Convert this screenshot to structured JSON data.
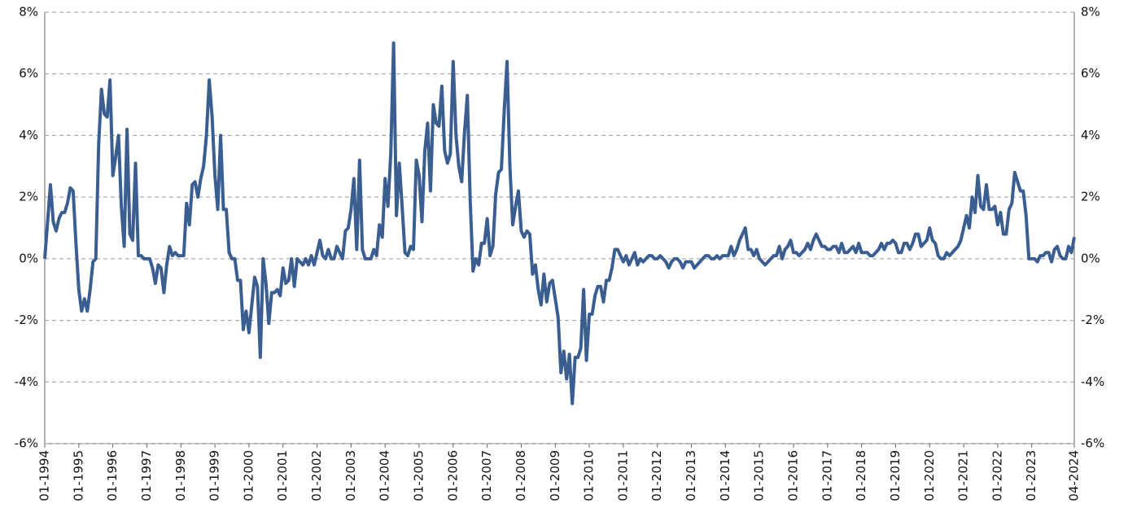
{
  "chart_data": {
    "type": "line",
    "categories": [
      "01-1994",
      null,
      null,
      null,
      null,
      null,
      null,
      null,
      null,
      null,
      null,
      null,
      "01-1995",
      null,
      null,
      null,
      null,
      null,
      null,
      null,
      null,
      null,
      null,
      null,
      "01-1996",
      null,
      null,
      null,
      null,
      null,
      null,
      null,
      null,
      null,
      null,
      null,
      "01-1997",
      null,
      null,
      null,
      null,
      null,
      null,
      null,
      null,
      null,
      null,
      null,
      "01-1998",
      null,
      null,
      null,
      null,
      null,
      null,
      null,
      null,
      null,
      null,
      null,
      "01-1999",
      null,
      null,
      null,
      null,
      null,
      null,
      null,
      null,
      null,
      null,
      null,
      "01-2000",
      null,
      null,
      null,
      null,
      null,
      null,
      null,
      null,
      null,
      null,
      null,
      "01-2001",
      null,
      null,
      null,
      null,
      null,
      null,
      null,
      null,
      null,
      null,
      null,
      "01-2002",
      null,
      null,
      null,
      null,
      null,
      null,
      null,
      null,
      null,
      null,
      null,
      "01-2003",
      null,
      null,
      null,
      null,
      null,
      null,
      null,
      null,
      null,
      null,
      null,
      "01-2004",
      null,
      null,
      null,
      null,
      null,
      null,
      null,
      null,
      null,
      null,
      null,
      "01-2005",
      null,
      null,
      null,
      null,
      null,
      null,
      null,
      null,
      null,
      null,
      null,
      "01-2006",
      null,
      null,
      null,
      null,
      null,
      null,
      null,
      null,
      null,
      null,
      null,
      "01-2007",
      null,
      null,
      null,
      null,
      null,
      null,
      null,
      null,
      null,
      null,
      null,
      "01-2008",
      null,
      null,
      null,
      null,
      null,
      null,
      null,
      null,
      null,
      null,
      null,
      "01-2009",
      null,
      null,
      null,
      null,
      null,
      null,
      null,
      null,
      null,
      null,
      null,
      "01-2010",
      null,
      null,
      null,
      null,
      null,
      null,
      null,
      null,
      null,
      null,
      null,
      "01-2011",
      null,
      null,
      null,
      null,
      null,
      null,
      null,
      null,
      null,
      null,
      null,
      "01-2012",
      null,
      null,
      null,
      null,
      null,
      null,
      null,
      null,
      null,
      null,
      null,
      "01-2013",
      null,
      null,
      null,
      null,
      null,
      null,
      null,
      null,
      null,
      null,
      null,
      "01-2014",
      null,
      null,
      null,
      null,
      null,
      null,
      null,
      null,
      null,
      null,
      null,
      "01-2015",
      null,
      null,
      null,
      null,
      null,
      null,
      null,
      null,
      null,
      null,
      null,
      "01-2016",
      null,
      null,
      null,
      null,
      null,
      null,
      null,
      null,
      null,
      null,
      null,
      "01-2017",
      null,
      null,
      null,
      null,
      null,
      null,
      null,
      null,
      null,
      null,
      null,
      "01-2018",
      null,
      null,
      null,
      null,
      null,
      null,
      null,
      null,
      null,
      null,
      null,
      "01-2019",
      null,
      null,
      null,
      null,
      null,
      null,
      null,
      null,
      null,
      null,
      null,
      "01-2020",
      null,
      null,
      null,
      null,
      null,
      null,
      null,
      null,
      null,
      null,
      null,
      "01-2021",
      null,
      null,
      null,
      null,
      null,
      null,
      null,
      null,
      null,
      null,
      null,
      "01-2022",
      null,
      null,
      null,
      null,
      null,
      null,
      null,
      null,
      null,
      null,
      null,
      "01-2023",
      null,
      null,
      null,
      null,
      null,
      null,
      null,
      null,
      null,
      null,
      null,
      null,
      null,
      null,
      "04-2024"
    ],
    "values": [
      0,
      1.2,
      2.4,
      1.2,
      0.9,
      1.3,
      1.5,
      1.5,
      1.8,
      2.3,
      2.2,
      0.5,
      -1.0,
      -1.7,
      -1.3,
      -1.7,
      -1.0,
      -0.1,
      0,
      3.7,
      5.5,
      4.7,
      4.6,
      5.8,
      2.7,
      3.3,
      4.0,
      1.7,
      0.4,
      4.2,
      0.8,
      0.6,
      3.1,
      0.1,
      0.1,
      0,
      0,
      0,
      -0.3,
      -0.8,
      -0.2,
      -0.3,
      -1.1,
      -0.2,
      0.4,
      0.1,
      0.2,
      0.1,
      0.1,
      0.1,
      1.8,
      1.1,
      2.4,
      2.5,
      2.0,
      2.6,
      3.0,
      4.0,
      5.8,
      4.6,
      2.7,
      1.6,
      4.0,
      1.6,
      1.6,
      0.2,
      0,
      0,
      -0.7,
      -0.7,
      -2.3,
      -1.7,
      -2.4,
      -1.5,
      -0.6,
      -0.9,
      -3.2,
      0,
      -0.8,
      -2.1,
      -1.1,
      -1.1,
      -1.0,
      -1.2,
      -0.3,
      -0.8,
      -0.7,
      0,
      -0.9,
      0,
      -0.1,
      -0.2,
      0,
      -0.2,
      0.1,
      -0.2,
      0.2,
      0.6,
      0.1,
      0,
      0.3,
      0,
      0,
      0.4,
      0.2,
      0,
      0.9,
      1.0,
      1.6,
      2.6,
      0.3,
      3.2,
      0.3,
      0,
      0,
      0,
      0.3,
      0.1,
      1.1,
      0.7,
      2.6,
      1.7,
      3.4,
      7.0,
      1.4,
      3.1,
      1.7,
      0.2,
      0.1,
      0.4,
      0.3,
      3.2,
      2.7,
      1.2,
      3.5,
      4.4,
      2.2,
      5.0,
      4.4,
      4.3,
      5.6,
      3.5,
      3.1,
      3.4,
      6.4,
      4.0,
      3.0,
      2.5,
      4.1,
      5.3,
      1.9,
      -0.4,
      0,
      -0.2,
      0.5,
      0.5,
      1.3,
      0.1,
      0.4,
      2.1,
      2.8,
      2.9,
      4.8,
      6.4,
      3.0,
      1.1,
      1.7,
      2.2,
      0.9,
      0.7,
      0.9,
      0.8,
      -0.5,
      -0.2,
      -1.0,
      -1.5,
      -0.5,
      -1.4,
      -0.8,
      -0.7,
      -1.3,
      -1.9,
      -3.7,
      -3.0,
      -3.9,
      -3.1,
      -4.7,
      -3.2,
      -3.2,
      -2.9,
      -1.0,
      -3.3,
      -1.8,
      -1.8,
      -1.2,
      -0.9,
      -0.9,
      -1.4,
      -0.7,
      -0.7,
      -0.3,
      0.3,
      0.3,
      0.1,
      -0.1,
      0.1,
      -0.2,
      0,
      0.2,
      -0.2,
      0,
      -0.1,
      0,
      0.1,
      0.1,
      0,
      0,
      0.1,
      0,
      -0.1,
      -0.3,
      -0.1,
      0,
      0,
      -0.1,
      -0.3,
      -0.1,
      -0.1,
      -0.1,
      -0.3,
      -0.2,
      -0.1,
      0,
      0.1,
      0.1,
      0,
      0,
      0.1,
      0,
      0.1,
      0.1,
      0.1,
      0.4,
      0.1,
      0.3,
      0.6,
      0.8,
      1.0,
      0.3,
      0.3,
      0.1,
      0.3,
      0,
      -0.1,
      -0.2,
      -0.1,
      0,
      0.1,
      0.1,
      0.4,
      0,
      0.3,
      0.4,
      0.6,
      0.2,
      0.2,
      0.1,
      0.2,
      0.3,
      0.5,
      0.3,
      0.6,
      0.8,
      0.6,
      0.4,
      0.4,
      0.3,
      0.3,
      0.4,
      0.4,
      0.2,
      0.5,
      0.2,
      0.2,
      0.3,
      0.4,
      0.2,
      0.5,
      0.2,
      0.2,
      0.2,
      0.1,
      0.1,
      0.2,
      0.3,
      0.5,
      0.3,
      0.5,
      0.5,
      0.6,
      0.5,
      0.2,
      0.2,
      0.5,
      0.5,
      0.3,
      0.5,
      0.8,
      0.8,
      0.4,
      0.5,
      0.6,
      1.0,
      0.6,
      0.5,
      0.1,
      0,
      0,
      0.2,
      0.1,
      0.2,
      0.3,
      0.4,
      0.6,
      1.0,
      1.4,
      1.0,
      2.0,
      1.5,
      2.7,
      1.7,
      1.6,
      2.4,
      1.6,
      1.6,
      1.7,
      1.1,
      1.5,
      0.8,
      0.8,
      1.6,
      1.8,
      2.8,
      2.5,
      2.2,
      2.2,
      1.4,
      0,
      0,
      0,
      -0.1,
      0.1,
      0.1,
      0.2,
      0.2,
      -0.1,
      0.3,
      0.4,
      0.1,
      0,
      0,
      0.4,
      0.2,
      0.7
    ],
    "color": "#3b5e91",
    "ylim": [
      -6,
      8
    ],
    "yticks": [
      {
        "value": -6,
        "label": "-6%"
      },
      {
        "value": -4,
        "label": "-4%"
      },
      {
        "value": -2,
        "label": "-2%"
      },
      {
        "value": 0,
        "label": "0%"
      },
      {
        "value": 2,
        "label": "2%"
      },
      {
        "value": 4,
        "label": "4%"
      },
      {
        "value": 6,
        "label": "6%"
      },
      {
        "value": 8,
        "label": "8%"
      }
    ],
    "grid": true
  }
}
